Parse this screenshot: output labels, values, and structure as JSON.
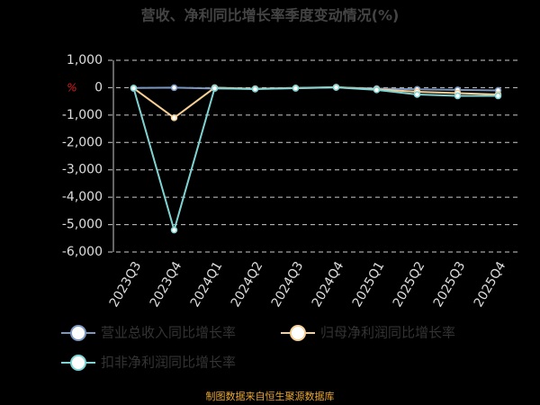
{
  "chart_data": {
    "type": "line",
    "title": "营收、净利同比增长率季度变动情况(%)",
    "y_unit": "%",
    "categories": [
      "2023Q3",
      "2023Q4",
      "2024Q1",
      "2024Q2",
      "2024Q3",
      "2024Q4",
      "2025Q1",
      "2025Q2",
      "2025Q3",
      "2025Q4"
    ],
    "series": [
      {
        "name": "营业总收入同比增长率",
        "color": "#7a98c2",
        "values": [
          -10,
          0,
          -30,
          -40,
          -20,
          10,
          -30,
          -60,
          -80,
          -100
        ]
      },
      {
        "name": "归母净利润同比增长率",
        "color": "#f7cf95",
        "values": [
          -20,
          -1100,
          0,
          -40,
          -10,
          20,
          -60,
          -150,
          -200,
          -250
        ]
      },
      {
        "name": "扣非净利润同比增长率",
        "color": "#7fd3d3",
        "values": [
          -20,
          -5200,
          -20,
          -50,
          -20,
          10,
          -80,
          -250,
          -300,
          -300
        ]
      }
    ],
    "ylim": [
      1000,
      -6000
    ],
    "yticks": [
      {
        "value": 1000,
        "label": "1,000"
      },
      0,
      {
        "value": -1000,
        "label": "-1,000"
      },
      {
        "value": -2000,
        "label": "-2,000"
      },
      {
        "value": -3000,
        "label": "-3,000"
      },
      {
        "value": -4000,
        "label": "-4,000"
      },
      {
        "value": -5000,
        "label": "-5,000"
      },
      {
        "value": -6000,
        "label": "-6,000"
      }
    ],
    "grid": true,
    "source": "制图数据来自恒生聚源数据库"
  }
}
